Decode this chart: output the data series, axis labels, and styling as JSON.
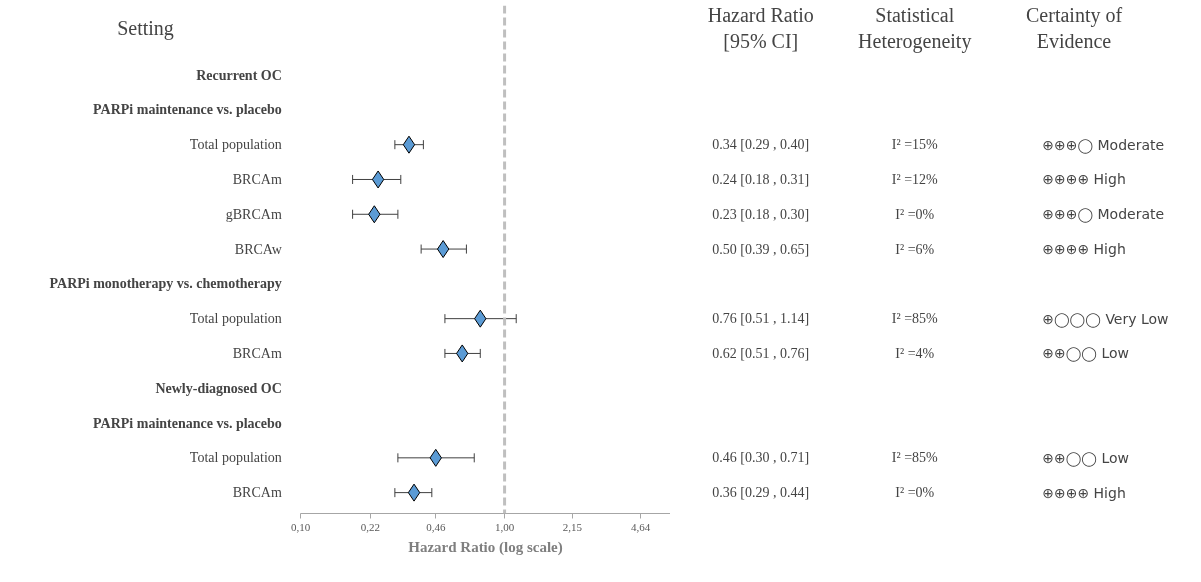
{
  "chart_data": {
    "type": "scatter",
    "orientation": "horizontal",
    "xlabel": "Hazard Ratio (log scale)",
    "categories": [
      "Recurrent OC",
      "PARPi maintenance vs. placebo",
      "Total population",
      "BRCAm",
      "gBRCAm",
      "BRCAw",
      "PARPi monotherapy vs. chemotherapy",
      "Total population",
      "BRCAm",
      "Newly-diagnosed OC",
      "PARPi maintenance vs. placebo",
      "Total population",
      "BRCAm"
    ],
    "values": [
      null,
      null,
      0.34,
      0.24,
      0.23,
      0.5,
      null,
      0.76,
      0.62,
      null,
      null,
      0.46,
      0.36
    ],
    "errors": [
      null,
      null,
      [
        0.29,
        0.4
      ],
      [
        0.18,
        0.31
      ],
      [
        0.18,
        0.3
      ],
      [
        0.39,
        0.65
      ],
      null,
      [
        0.51,
        1.14
      ],
      [
        0.51,
        0.76
      ],
      null,
      null,
      [
        0.3,
        0.71
      ],
      [
        0.29,
        0.44
      ]
    ],
    "value_labels": [
      null,
      null,
      "0.34 [0.29 , 0.40]",
      "0.24 [0.18 , 0.31]",
      "0.23 [0.18 , 0.30]",
      "0.50 [0.39 , 0.65]",
      null,
      "0.76 [0.51 , 1.14]",
      "0.62 [0.51 , 0.76]",
      null,
      null,
      "0.46 [0.30 , 0.71]",
      "0.36 [0.29 , 0.44]"
    ],
    "color": "#5b9bd5",
    "marker": "diamond",
    "log": "x",
    "grid": false,
    "xlim": [
      0.1,
      6.5
    ],
    "xticks": [
      {
        "value": 0.1,
        "label": "0,10"
      },
      {
        "value": 0.22,
        "label": "0,22"
      },
      {
        "value": 0.46,
        "label": "0,46"
      },
      {
        "value": 1.0,
        "label": "1,00"
      },
      {
        "value": 2.15,
        "label": "2,15"
      },
      {
        "value": 4.64,
        "label": "4,64"
      }
    ],
    "ref_lines": [
      {
        "axis": "x",
        "value": 1.0,
        "color": "#bfbfbf",
        "line_style": "dashed"
      }
    ],
    "annotations": [
      "Setting",
      "Hazard Ratio\n[95% CI]",
      "Statistical\nHeterogeneity",
      "Certainty of\nEvidence",
      "I² =15%",
      "⊕⊕⊕◯ Moderate",
      "I² =12%",
      "⊕⊕⊕⊕ High",
      "I² =0%",
      "⊕⊕⊕◯ Moderate",
      "I² =6%",
      "⊕⊕⊕⊕ High",
      "I² =85%",
      "⊕◯◯◯ Very Low",
      "I² =4%",
      "⊕⊕◯◯ Low",
      "I² =85%",
      "⊕⊕◯◯ Low",
      "I² =0%",
      "⊕⊕⊕⊕ High"
    ]
  }
}
